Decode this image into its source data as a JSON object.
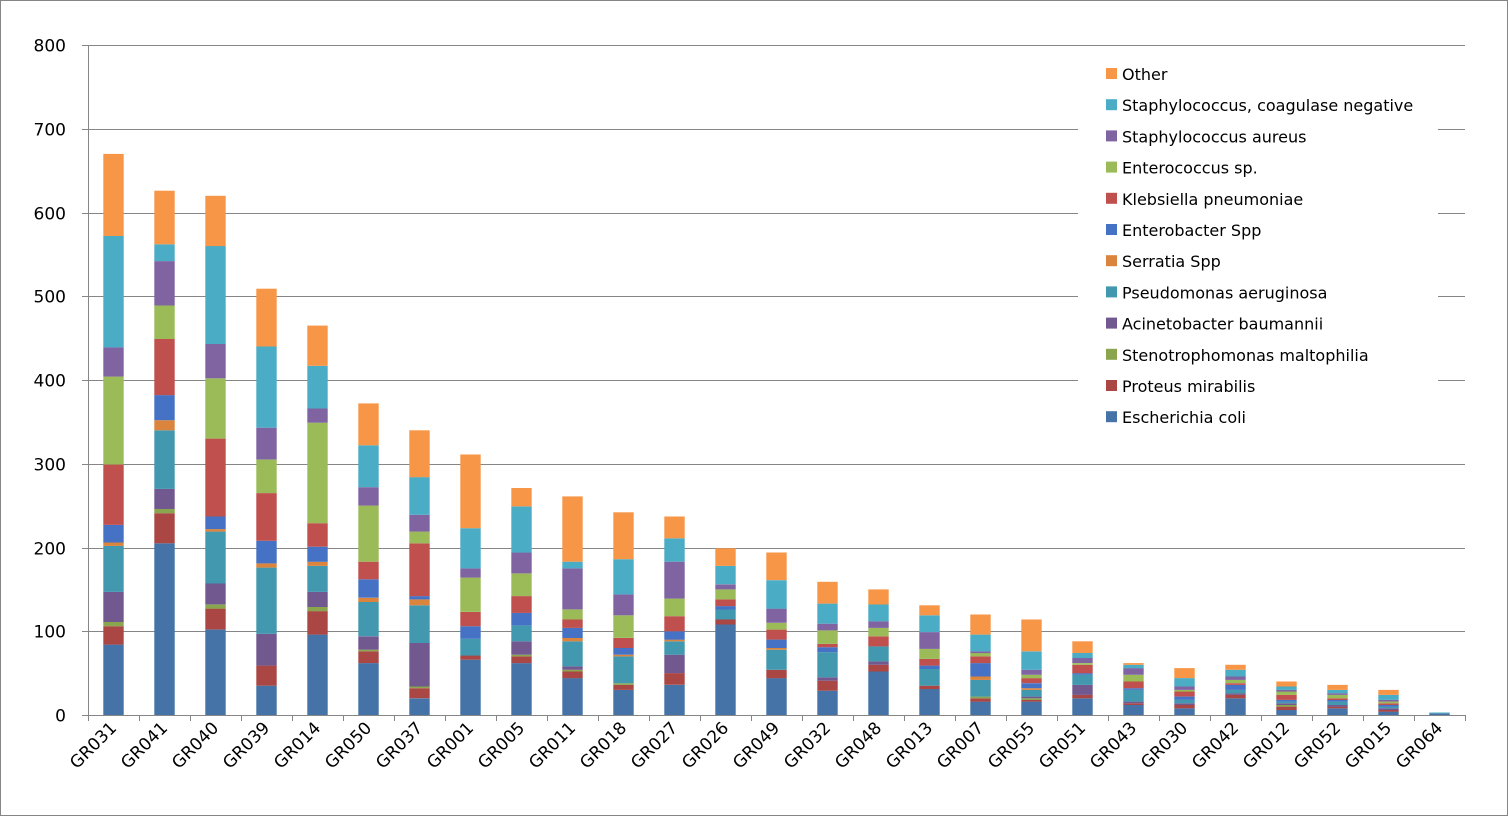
{
  "chart_data": {
    "type": "bar",
    "stacked": true,
    "title": "",
    "xlabel": "",
    "ylabel": "",
    "ylim": [
      0,
      800
    ],
    "yticks": [
      0,
      100,
      200,
      300,
      400,
      500,
      600,
      700,
      800
    ],
    "grid": true,
    "legend_position": "top-right",
    "categories": [
      "GR031",
      "GR041",
      "GR040",
      "GR039",
      "GR014",
      "GR050",
      "GR037",
      "GR001",
      "GR005",
      "GR011",
      "GR018",
      "GR027",
      "GR026",
      "GR049",
      "GR032",
      "GR048",
      "GR013",
      "GR007",
      "GR055",
      "GR051",
      "GR043",
      "GR030",
      "GR042",
      "GR012",
      "GR052",
      "GR015",
      "GR064"
    ],
    "series": [
      {
        "name": "Escherichia coli",
        "color": "#4573A7",
        "values": [
          84,
          205,
          102,
          35,
          96,
          62,
          20,
          66,
          62,
          44,
          30,
          36,
          108,
          44,
          29,
          52,
          31,
          16,
          16,
          20,
          12,
          8,
          20,
          6,
          8,
          4,
          2
        ]
      },
      {
        "name": "Proteus mirabilis",
        "color": "#AA4643",
        "values": [
          22,
          36,
          25,
          24,
          28,
          14,
          12,
          5,
          8,
          8,
          6,
          14,
          6,
          10,
          12,
          8,
          4,
          4,
          2,
          4,
          2,
          4,
          4,
          4,
          2,
          2,
          0
        ]
      },
      {
        "name": "Stenotrophomonas maltophilia",
        "color": "#89A54E",
        "values": [
          5,
          5,
          5,
          0,
          5,
          2,
          2,
          0,
          2,
          2,
          2,
          0,
          0,
          0,
          0,
          0,
          0,
          2,
          2,
          0,
          0,
          0,
          0,
          2,
          0,
          0,
          0
        ]
      },
      {
        "name": "Acinetobacter baumannii",
        "color": "#71588F",
        "values": [
          36,
          24,
          25,
          38,
          18,
          16,
          52,
          0,
          16,
          4,
          0,
          22,
          0,
          0,
          4,
          4,
          0,
          0,
          2,
          12,
          2,
          2,
          2,
          2,
          2,
          2,
          0
        ]
      },
      {
        "name": "Pseudomonas aeruginosa",
        "color": "#4198AF",
        "values": [
          55,
          70,
          62,
          79,
          31,
          41,
          45,
          20,
          19,
          30,
          32,
          16,
          12,
          24,
          30,
          18,
          20,
          20,
          8,
          12,
          14,
          4,
          4,
          2,
          4,
          2,
          0
        ]
      },
      {
        "name": "Serratia Spp",
        "color": "#DB843D",
        "values": [
          4,
          12,
          3,
          5,
          5,
          5,
          7,
          0,
          0,
          4,
          2,
          2,
          0,
          2,
          0,
          0,
          0,
          4,
          2,
          0,
          0,
          0,
          0,
          0,
          0,
          0,
          0
        ]
      },
      {
        "name": "Enterobacter Spp",
        "color": "#4572C4",
        "values": [
          21,
          30,
          15,
          27,
          18,
          22,
          4,
          15,
          15,
          12,
          8,
          10,
          4,
          10,
          6,
          0,
          4,
          16,
          6,
          2,
          2,
          4,
          6,
          2,
          2,
          2,
          0
        ]
      },
      {
        "name": "Klebsiella pneumoniae",
        "color": "#C0504D",
        "values": [
          72,
          67,
          93,
          57,
          28,
          21,
          63,
          17,
          20,
          10,
          12,
          18,
          8,
          12,
          4,
          12,
          8,
          8,
          6,
          10,
          8,
          6,
          2,
          6,
          2,
          2,
          0
        ]
      },
      {
        "name": "Enterococcus sp.",
        "color": "#9BBB59",
        "values": [
          105,
          40,
          72,
          40,
          120,
          67,
          14,
          41,
          27,
          12,
          27,
          21,
          12,
          8,
          16,
          10,
          12,
          4,
          4,
          2,
          8,
          2,
          4,
          4,
          4,
          2,
          0
        ]
      },
      {
        "name": "Staphylococcus aureus",
        "color": "#8064A2",
        "values": [
          35,
          53,
          41,
          38,
          17,
          22,
          20,
          11,
          25,
          49,
          25,
          44,
          6,
          17,
          8,
          8,
          20,
          2,
          6,
          6,
          8,
          4,
          4,
          2,
          2,
          2,
          0
        ]
      },
      {
        "name": "Staphylococcus, coagulase negative",
        "color": "#4BACC6",
        "values": [
          133,
          20,
          117,
          97,
          51,
          50,
          45,
          48,
          55,
          8,
          42,
          28,
          22,
          34,
          24,
          20,
          20,
          20,
          22,
          6,
          4,
          10,
          8,
          4,
          4,
          6,
          1
        ]
      },
      {
        "name": "Other",
        "color": "#F79646",
        "values": [
          98,
          64,
          60,
          69,
          48,
          50,
          56,
          88,
          22,
          78,
          56,
          26,
          21,
          33,
          26,
          18,
          12,
          24,
          38,
          14,
          2,
          12,
          6,
          6,
          6,
          6,
          0
        ]
      }
    ]
  }
}
